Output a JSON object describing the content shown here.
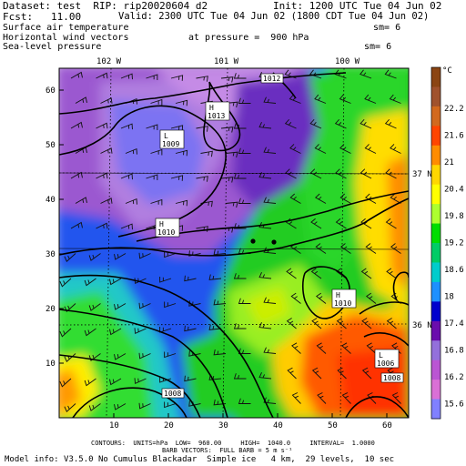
{
  "header": {
    "line1_left": "Dataset: test  RIP: rip20020604 d2",
    "line1_right": "Init: 1200 UTC Tue 04 Jun 02",
    "line2_left": "Fcst:   11.00",
    "line2_right": "Valid: 2300 UTC Tue 04 Jun 02 (1800 CDT Tue 04 Jun 02)",
    "line3_left": "Surface air temperature",
    "line3_right": "sm= 6",
    "line4_left": "Horizontal wind vectors",
    "line4_mid": "at pressure =  900 hPa",
    "line5_left": "Sea-level pressure",
    "line5_right": "sm= 6"
  },
  "map": {
    "x_ticks": [
      10,
      20,
      30,
      40,
      50,
      60
    ],
    "y_ticks": [
      10,
      20,
      30,
      40,
      50,
      60
    ],
    "lon_labels": [
      "102 W",
      "101 W",
      "100 W"
    ],
    "lat_labels": [
      "37 N",
      "36 N"
    ],
    "pressure_labels": [
      {
        "text": "1012"
      },
      {
        "text": "H\n1013"
      },
      {
        "text": "L\n1009"
      },
      {
        "text": "H\n1010"
      },
      {
        "text": "H\n1010"
      },
      {
        "text": "L\n1006"
      },
      {
        "text": "1008"
      },
      {
        "text": "1008"
      }
    ]
  },
  "colorbar": {
    "unit": "°C",
    "labels": [
      "22.2",
      "21.6",
      "21",
      "20.4",
      "19.8",
      "19.2",
      "18.6",
      "18",
      "17.4",
      "16.8",
      "16.2",
      "15.6"
    ],
    "colors": [
      "#8b4513",
      "#a0522d",
      "#d2691e",
      "#ff4500",
      "#ff8c00",
      "#ffd700",
      "#ffff00",
      "#adff2f",
      "#00dd00",
      "#00cc66",
      "#00cccc",
      "#1e90ff",
      "#0000cd",
      "#6a0dad",
      "#9370db",
      "#ba55d3",
      "#da70d6",
      "#8080ff"
    ]
  },
  "footer": {
    "line1": "CONTOURS:  UNITS=hPa  LOW=  960.00     HIGH=  1040.0     INTERVAL=  1.0000",
    "line2": "BARB VECTORS:  FULL BARB = 5 m s⁻¹",
    "line3": "Model info: V3.5.0 No Cumulus Blackadar  Simple ice   4 km,  29 levels,  10 sec"
  }
}
